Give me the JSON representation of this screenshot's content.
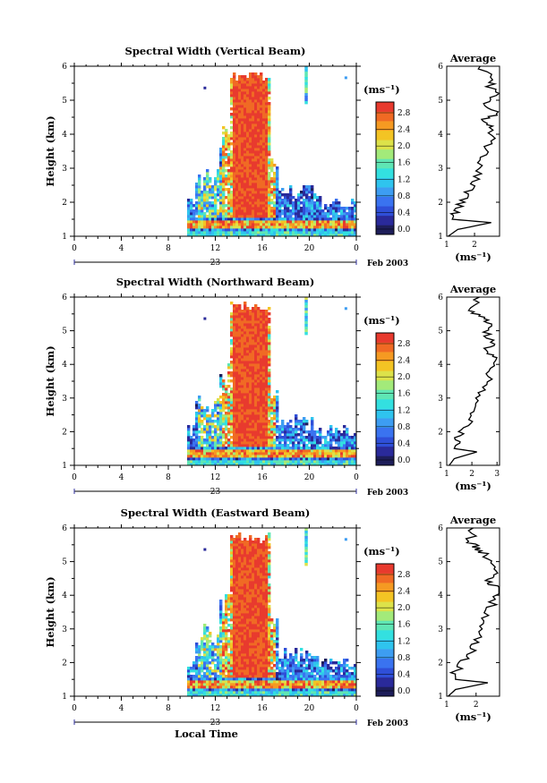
{
  "panels": [
    {
      "title": "Spectral Width (Vertical Beam)",
      "avg_title": "Average",
      "avg_ticks": [
        "1",
        "2"
      ],
      "avg_xlim": [
        1,
        2.9
      ]
    },
    {
      "title": "Spectral Width (Northward Beam)",
      "avg_title": "Average",
      "avg_ticks": [
        "1",
        "2",
        "3"
      ],
      "avg_xlim": [
        1,
        3.1
      ]
    },
    {
      "title": "Spectral Width (Eastward Beam)",
      "avg_title": "Average",
      "avg_ticks": [
        "1",
        "2"
      ],
      "avg_xlim": [
        1,
        2.8
      ]
    }
  ],
  "common": {
    "ylabel": "Height (km)",
    "xlabel": "Local Time",
    "y_ticks": [
      "1",
      "2",
      "3",
      "4",
      "5",
      "6"
    ],
    "x_ticks": [
      "0",
      "4",
      "8",
      "12",
      "16",
      "20",
      "0"
    ],
    "day_label": "23",
    "month_label": "Feb 2003",
    "unit": "(ms⁻¹)",
    "colorbar_ticks": [
      "0.0",
      "0.4",
      "0.8",
      "1.2",
      "1.6",
      "2.0",
      "2.4",
      "2.8"
    ]
  },
  "colors": {
    "scale": [
      "#1e1e5a",
      "#2a2a9a",
      "#2f4fd8",
      "#3a73f0",
      "#3d9df2",
      "#2fc4ee",
      "#33e0e0",
      "#5fe6b4",
      "#a3ea7a",
      "#dde24a",
      "#f3c424",
      "#f59a22",
      "#f06a24",
      "#e83a2e"
    ]
  },
  "chart_data": [
    {
      "type": "heatmap",
      "title": "Spectral Width (Vertical Beam)",
      "xlabel": "",
      "ylabel": "Height (km)",
      "xlim": [
        0,
        24
      ],
      "ylim": [
        1,
        6
      ],
      "colorbar_range": [
        0,
        3.0
      ],
      "average_profile": {
        "x_label": "(ms⁻¹)",
        "xlim": [
          1,
          2.9
        ],
        "height": [
          1.0,
          1.2,
          1.4,
          1.5,
          1.7,
          2.0,
          2.3,
          2.6,
          3.0,
          3.4,
          3.8,
          4.2,
          4.4,
          4.6,
          4.9,
          5.2,
          5.4,
          5.6,
          6.0
        ],
        "width": [
          1.05,
          1.4,
          2.6,
          1.2,
          1.3,
          1.5,
          1.8,
          2.0,
          2.2,
          2.4,
          2.55,
          2.7,
          2.3,
          2.8,
          2.4,
          2.9,
          2.5,
          2.7,
          2.2
        ]
      }
    },
    {
      "type": "heatmap",
      "title": "Spectral Width (Northward Beam)",
      "xlabel": "",
      "ylabel": "Height (km)",
      "xlim": [
        0,
        24
      ],
      "ylim": [
        1,
        6
      ],
      "colorbar_range": [
        0,
        3.0
      ],
      "average_profile": {
        "x_label": "(ms⁻¹)",
        "xlim": [
          1,
          3.1
        ],
        "height": [
          1.0,
          1.2,
          1.4,
          1.5,
          1.7,
          2.0,
          2.3,
          2.6,
          3.0,
          3.4,
          3.8,
          4.2,
          4.4,
          4.6,
          4.9,
          5.2,
          5.4,
          5.6,
          6.0
        ],
        "width": [
          1.1,
          1.3,
          2.2,
          1.3,
          1.4,
          1.6,
          1.9,
          2.1,
          2.3,
          2.6,
          2.7,
          3.0,
          2.5,
          2.8,
          2.6,
          2.7,
          2.4,
          2.0,
          2.3
        ]
      }
    },
    {
      "type": "heatmap",
      "title": "Spectral Width (Eastward Beam)",
      "xlabel": "Local Time",
      "ylabel": "Height (km)",
      "xlim": [
        0,
        24
      ],
      "ylim": [
        1,
        6
      ],
      "colorbar_range": [
        0,
        3.0
      ],
      "average_profile": {
        "x_label": "(ms⁻¹)",
        "xlim": [
          1,
          2.8
        ],
        "height": [
          1.0,
          1.2,
          1.4,
          1.5,
          1.7,
          2.0,
          2.3,
          2.6,
          3.0,
          3.4,
          3.8,
          4.2,
          4.4,
          4.6,
          4.9,
          5.2,
          5.4,
          5.6,
          6.0
        ],
        "width": [
          1.05,
          1.3,
          2.4,
          1.3,
          1.3,
          1.5,
          1.8,
          2.0,
          2.2,
          2.4,
          2.6,
          2.8,
          2.4,
          2.7,
          2.5,
          2.3,
          2.0,
          1.8,
          1.9
        ]
      }
    }
  ]
}
